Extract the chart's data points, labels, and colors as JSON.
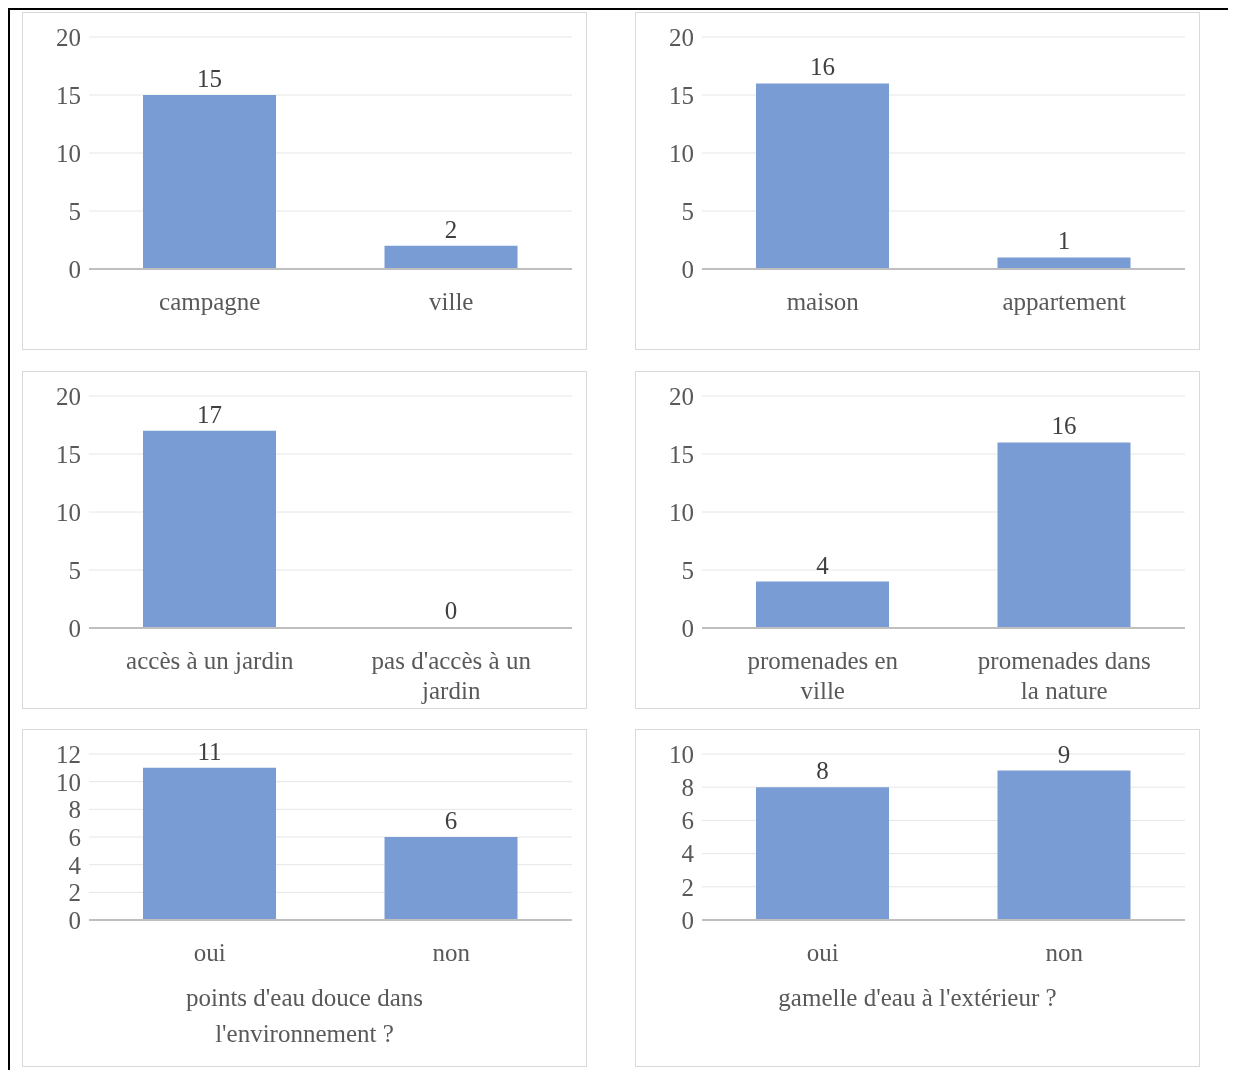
{
  "chart_data": [
    {
      "type": "bar",
      "categories": [
        "campagne",
        "ville"
      ],
      "values": [
        15,
        2
      ],
      "color": "#7a9cd4",
      "ylim": [
        0,
        20
      ],
      "yticks": [
        0,
        5,
        10,
        15,
        20
      ],
      "grid": "y",
      "data_labels": true
    },
    {
      "type": "bar",
      "categories": [
        "maison",
        "appartement"
      ],
      "values": [
        16,
        1
      ],
      "color": "#7a9cd4",
      "ylim": [
        0,
        20
      ],
      "yticks": [
        0,
        5,
        10,
        15,
        20
      ],
      "grid": "y",
      "data_labels": true
    },
    {
      "type": "bar",
      "categories": [
        "accès à un jardin",
        "pas d'accès à un jardin"
      ],
      "values": [
        17,
        0
      ],
      "color": "#7a9cd4",
      "ylim": [
        0,
        20
      ],
      "yticks": [
        0,
        5,
        10,
        15,
        20
      ],
      "grid": "y",
      "data_labels": true
    },
    {
      "type": "bar",
      "categories": [
        "promenades en ville",
        "promenades dans la nature"
      ],
      "values": [
        4,
        16
      ],
      "color": "#7a9cd4",
      "ylim": [
        0,
        20
      ],
      "yticks": [
        0,
        5,
        10,
        15,
        20
      ],
      "grid": "y",
      "data_labels": true
    },
    {
      "type": "bar",
      "xlabel": "points d'eau douce dans l'environnement ?",
      "categories": [
        "oui",
        "non"
      ],
      "values": [
        11,
        6
      ],
      "color": "#7a9cd4",
      "ylim": [
        0,
        12
      ],
      "yticks": [
        0,
        2,
        4,
        6,
        8,
        10,
        12
      ],
      "grid": "y",
      "data_labels": true
    },
    {
      "type": "bar",
      "xlabel": "gamelle d'eau à l'extérieur ?",
      "categories": [
        "oui",
        "non"
      ],
      "values": [
        8,
        9
      ],
      "color": "#7a9cd4",
      "ylim": [
        0,
        10
      ],
      "yticks": [
        0,
        2,
        4,
        6,
        8,
        10
      ],
      "grid": "y",
      "data_labels": true
    }
  ]
}
